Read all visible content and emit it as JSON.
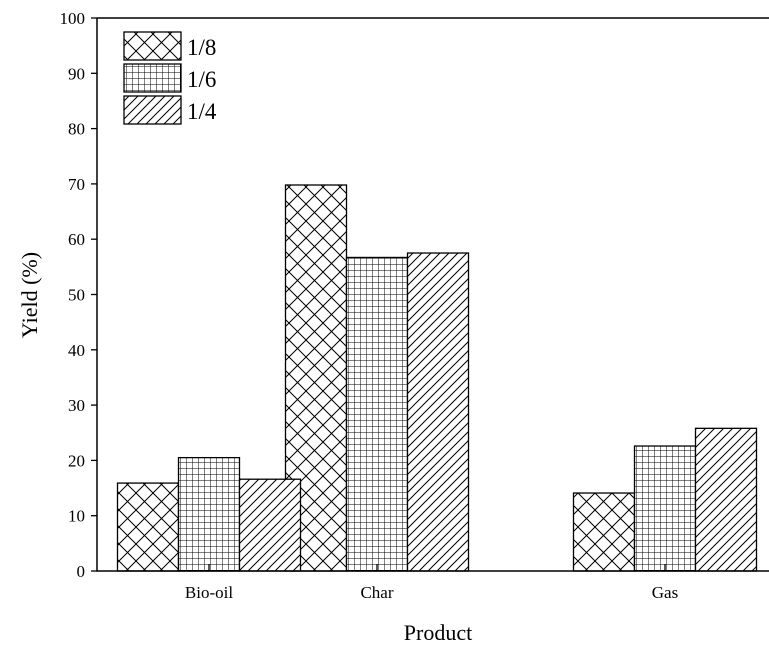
{
  "chart_data": {
    "type": "bar",
    "title": "",
    "xlabel": "Product",
    "ylabel": "Yield (%)",
    "categories": [
      "Bio-oil",
      "Char",
      "Gas"
    ],
    "series": [
      {
        "name": "1/8",
        "values": [
          15.9,
          69.8,
          14.1
        ],
        "pattern": "crosshatch"
      },
      {
        "name": "1/6",
        "values": [
          20.5,
          56.7,
          22.6
        ],
        "pattern": "grid"
      },
      {
        "name": "1/4",
        "values": [
          16.6,
          57.5,
          25.8
        ],
        "pattern": "diagonal"
      }
    ],
    "ylim": [
      0,
      100
    ],
    "yticks": [
      0,
      10,
      20,
      30,
      40,
      50,
      60,
      70,
      80,
      90,
      100
    ],
    "grid": false,
    "legend_position": "top-left",
    "colors": {
      "bar_fill": "#ffffff",
      "stroke": "#000000"
    }
  }
}
